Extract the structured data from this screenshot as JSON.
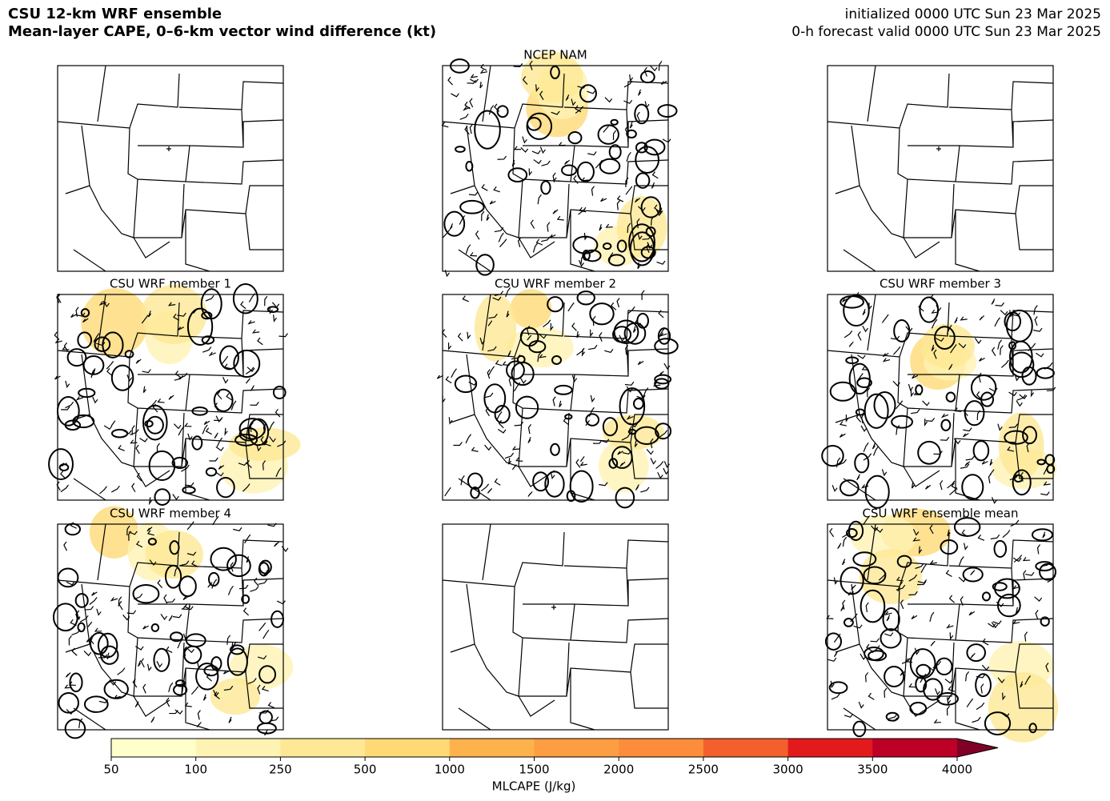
{
  "header": {
    "title": "CSU 12-km WRF ensemble",
    "subtitle": "Mean-layer CAPE, 0–6-km vector wind difference (kt)",
    "init": "initialized 0000 UTC Sun 23 Mar 2025",
    "valid": "0-h forecast valid 0000 UTC Sun 23 Mar 2025"
  },
  "panels": [
    {},
    {
      "title": "NCEP NAM"
    },
    {},
    {
      "title": "CSU WRF member 1"
    },
    {
      "title": "CSU WRF member 2"
    },
    {
      "title": "CSU WRF member 3"
    },
    {
      "title": "CSU WRF member 4"
    },
    {},
    {
      "title": "CSU WRF ensemble mean"
    }
  ],
  "colorbar": {
    "label": "MLCAPE (J/kg)",
    "ticks": [
      50,
      100,
      250,
      500,
      1000,
      1500,
      2000,
      2500,
      3000,
      3500,
      4000
    ],
    "colors": [
      "#ffffcc",
      "#fff3b3",
      "#fee895",
      "#fed976",
      "#feb24c",
      "#fd9e43",
      "#fd8d3c",
      "#f3602d",
      "#e31a1c",
      "#bd0026",
      "#800026"
    ]
  }
}
